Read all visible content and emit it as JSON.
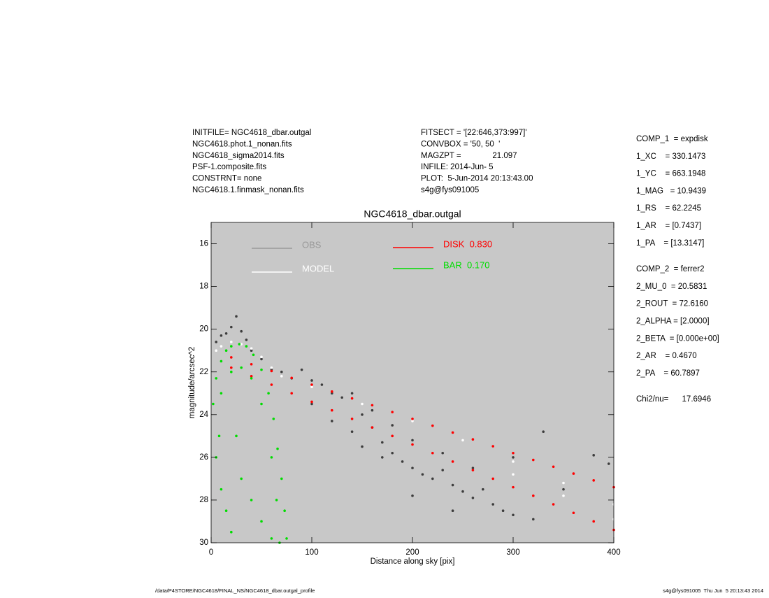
{
  "header": {
    "left": [
      "INITFILE= NGC4618_dbar.outgal",
      "NGC4618.phot.1_nonan.fits",
      "NGC4618_sigma2014.fits",
      "PSF-1.composite.fits",
      "CONSTRNT= none",
      "NGC4618.1.finmask_nonan.fits"
    ],
    "middle": [
      "FITSECT = '[22:646,373:997]'",
      "CONVBOX = '50, 50  '",
      "MAGZPT =              21.097",
      "INFILE: 2014-Jun- 5",
      "PLOT:  5-Jun-2014 20:13:43.00",
      "s4g@fys091005"
    ]
  },
  "params": [
    [
      "COMP_1  = expdisk",
      "1_XC    = 330.1473",
      "1_YC    = 663.1948",
      "1_MAG   = 10.9439",
      "1_RS    = 62.2245",
      "1_AR    = [0.7437]",
      "1_PA    = [13.3147]"
    ],
    [
      "COMP_2  = ferrer2",
      "2_MU_0  = 20.5831",
      "2_ROUT  = 72.6160",
      "2_ALPHA = [2.0000]",
      "2_BETA  = [0.000e+00]",
      "2_AR    = 0.4670",
      "2_PA    = 60.7897"
    ],
    [
      "Chi2/nu=      17.6946"
    ]
  ],
  "footer": {
    "left": "/data/P4STORE/NGC4618/FINAL_NS/NGC4618_dbar.outgal_profile",
    "right": "s4g@fys091005  Thu Jun  5 20:13:43 2014"
  },
  "chart_data": {
    "type": "scatter",
    "title": "NGC4618_dbar.outgal",
    "x_label": "Distance along sky [pix]",
    "y_label": "magnitude/arcsec^2",
    "xlim": [
      0,
      400
    ],
    "ylim": [
      15,
      30
    ],
    "y_inverted": true,
    "xticks": [
      0,
      100,
      200,
      300,
      400
    ],
    "yticks": [
      16,
      18,
      20,
      22,
      24,
      26,
      28,
      30
    ],
    "background": "#c8c8c8",
    "series": [
      {
        "name": "OBS",
        "color": "#3c3c3c",
        "legend_color": "#999999",
        "x": [
          5,
          10,
          15,
          20,
          25,
          30,
          35,
          40,
          50,
          60,
          70,
          80,
          90,
          100,
          110,
          120,
          130,
          140,
          150,
          160,
          170,
          180,
          190,
          200,
          210,
          220,
          230,
          240,
          250,
          260,
          270,
          280,
          290,
          300,
          320,
          100,
          120,
          140,
          160,
          180,
          200,
          150,
          170,
          230,
          260,
          300,
          330,
          380,
          395,
          350,
          200,
          240
        ],
        "y": [
          20.6,
          20.3,
          20.2,
          19.9,
          19.4,
          20.1,
          20.5,
          21.0,
          21.4,
          21.9,
          22.0,
          22.3,
          21.9,
          22.4,
          22.6,
          23.0,
          23.2,
          23.0,
          24.0,
          24.6,
          25.3,
          25.8,
          26.2,
          26.5,
          26.8,
          27.0,
          26.6,
          27.3,
          27.6,
          27.9,
          27.5,
          28.2,
          28.5,
          28.7,
          28.9,
          23.5,
          24.3,
          24.8,
          23.8,
          24.5,
          25.2,
          25.5,
          26.0,
          25.8,
          26.5,
          26.0,
          24.8,
          25.9,
          26.3,
          27.5,
          27.8,
          28.5
        ]
      },
      {
        "name": "MODEL",
        "color": "#ffffff",
        "legend_color": "#ffffff",
        "x": [
          5,
          10,
          20,
          30,
          40,
          50,
          60,
          70,
          100,
          150,
          200,
          250,
          300,
          350,
          400,
          300,
          350,
          400
        ],
        "y": [
          21.0,
          20.8,
          20.6,
          20.7,
          20.9,
          21.3,
          21.8,
          22.2,
          22.7,
          23.5,
          24.3,
          25.2,
          26.2,
          27.2,
          28.2,
          26.8,
          27.8,
          28.9
        ]
      },
      {
        "name": "DISK  0.830",
        "color": "#ff0000",
        "legend_color": "#ff0000",
        "x": [
          20,
          20,
          40,
          40,
          60,
          60,
          80,
          80,
          100,
          100,
          120,
          120,
          140,
          140,
          160,
          160,
          180,
          180,
          200,
          200,
          220,
          220,
          240,
          240,
          260,
          260,
          280,
          280,
          300,
          300,
          320,
          320,
          340,
          340,
          360,
          360,
          380,
          380,
          400,
          400
        ],
        "y": [
          21.32,
          21.8,
          21.64,
          22.2,
          21.96,
          22.6,
          22.28,
          23.0,
          22.6,
          23.4,
          22.92,
          23.8,
          23.24,
          24.2,
          23.56,
          24.6,
          23.88,
          25.0,
          24.2,
          25.4,
          24.52,
          25.8,
          24.84,
          26.2,
          25.16,
          26.6,
          25.48,
          27.0,
          25.8,
          27.4,
          26.12,
          27.8,
          26.44,
          28.2,
          26.76,
          28.6,
          27.08,
          29.0,
          27.4,
          29.4
        ]
      },
      {
        "name": "BAR  0.170",
        "color": "#00dd00",
        "legend_color": "#00dd00",
        "x": [
          2,
          5,
          10,
          15,
          20,
          28,
          35,
          42,
          50,
          57,
          62,
          66,
          70,
          73,
          75,
          10,
          20,
          30,
          40,
          50,
          60,
          65,
          68,
          5,
          10,
          15,
          20,
          30,
          40,
          50,
          60,
          8,
          25
        ],
        "y": [
          23.5,
          22.3,
          21.5,
          21.0,
          20.8,
          20.7,
          20.8,
          21.2,
          21.9,
          23.0,
          24.2,
          25.6,
          27.0,
          28.5,
          29.8,
          23.0,
          22.0,
          21.8,
          22.3,
          23.5,
          26.0,
          28.0,
          30.0,
          26.0,
          27.5,
          28.5,
          29.5,
          27.0,
          28.0,
          29.0,
          29.8,
          25.0,
          25.0
        ]
      }
    ]
  }
}
